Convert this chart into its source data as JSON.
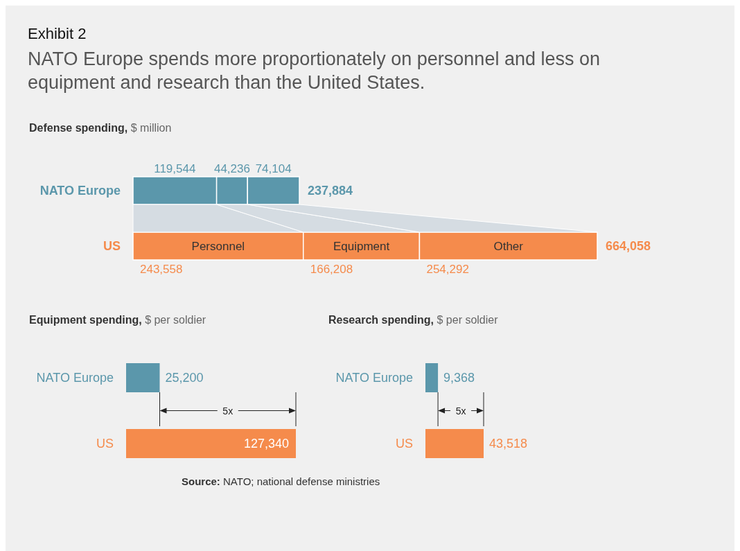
{
  "chart_data": [
    {
      "type": "bar",
      "orientation": "horizontal",
      "stacked": true,
      "title": "Defense spending,",
      "subtitle": "$ million",
      "annotations": [
        "Exhibit 2",
        "NATO Europe spends more proportionately on personnel and less on equipment and research than the United States."
      ],
      "categories": [
        "NATO Europe",
        "US"
      ],
      "totals": [
        "237,884",
        "664,058"
      ],
      "series": [
        {
          "name": "Personnel",
          "colors": [
            "#5b97ab",
            "#f58b4c"
          ],
          "values": [
            119544,
            243558
          ],
          "value_labels": [
            "119,544",
            "243,558"
          ]
        },
        {
          "name": "Equipment",
          "colors": [
            "#5b97ab",
            "#f58b4c"
          ],
          "values": [
            44236,
            166208
          ],
          "value_labels": [
            "44,236",
            "166,208"
          ]
        },
        {
          "name": "Other",
          "colors": [
            "#5b97ab",
            "#f58b4c"
          ],
          "values": [
            74104,
            254292
          ],
          "value_labels": [
            "74,104",
            "254,292"
          ]
        }
      ]
    },
    {
      "type": "bar",
      "orientation": "horizontal",
      "title": "Equipment spending,",
      "subtitle": "$ per soldier",
      "annotations": [
        "5x"
      ],
      "categories": [
        "NATO Europe",
        "US"
      ],
      "values": [
        25200,
        127340
      ],
      "value_labels": [
        "25,200",
        "127,340"
      ],
      "colors": [
        "#5b97ab",
        "#f58b4c"
      ]
    },
    {
      "type": "bar",
      "orientation": "horizontal",
      "title": "Research spending,",
      "subtitle": "$ per soldier",
      "annotations": [
        "5x",
        "Source: NATO; national defense ministries"
      ],
      "categories": [
        "NATO Europe",
        "US"
      ],
      "values": [
        9368,
        43518
      ],
      "value_labels": [
        "9,368",
        "43,518"
      ],
      "colors": [
        "#5b97ab",
        "#f58b4c"
      ]
    }
  ]
}
